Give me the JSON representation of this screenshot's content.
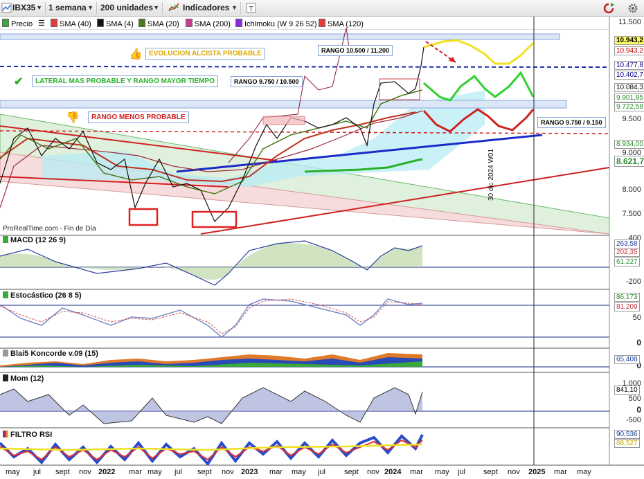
{
  "toolbar": {
    "symbol": "IBX35",
    "period": "1 semana",
    "units": "200 unidades",
    "indicators_label": "Indicadores"
  },
  "legend": [
    {
      "label": "Precio",
      "color": "#3aa83a"
    },
    {
      "label": "SMA (40)",
      "color": "#e23b3b"
    },
    {
      "label": "SMA (4)",
      "color": "#111111"
    },
    {
      "label": "SMA (20)",
      "color": "#4a7a1a"
    },
    {
      "label": "SMA (200)",
      "color": "#c93d8f"
    },
    {
      "label": "Ichimoku (W 9 26 52)",
      "color": "#8a2be2"
    },
    {
      "label": "SMA (120)",
      "color": "#e23b3b"
    }
  ],
  "annotations": {
    "alcista": "EVOLUCION ALCISTA PROBABLE",
    "lateral": "LATERAL MAS PROBABLE Y RANGO MAYOR TIEMPO",
    "rango_menos": "RANGO MENOS PROBABLE",
    "rango_1": "RANGO 10.500 / 11.200",
    "rango_2": "RANGO 9.750 / 10.500",
    "rango_3": "RANGO 9.750 / 9.150",
    "source": "ProRealTime.com - Fin de Día",
    "vline_label": "30 dic 2024 W01"
  },
  "main_axis": {
    "ticks": [
      "11.500",
      "9.500",
      "9.000",
      "8.000",
      "7.500"
    ],
    "price_labels": [
      {
        "text": "10.943,2",
        "bg": "#ffff66",
        "color": "#000000"
      },
      {
        "text": "10.943,2",
        "bg": "#ffffff",
        "color": "#c00000"
      },
      {
        "text": "10.477,8",
        "bg": "#ffffff",
        "color": "#000080"
      },
      {
        "text": "10.402,7",
        "bg": "#ffffff",
        "color": "#000080"
      },
      {
        "text": "10.084,3",
        "bg": "#ffffff",
        "color": "#111111"
      },
      {
        "text": "9.901,85",
        "bg": "#ffffff",
        "color": "#2a8a2a"
      },
      {
        "text": "9.722,58",
        "bg": "#ffffff",
        "color": "#2a8a2a"
      },
      {
        "text": "8.934,00",
        "bg": "#ffffff",
        "color": "#2a8a2a"
      },
      {
        "text": "8.621,7",
        "bg": "#ffffff",
        "color": "#2a8a2a"
      }
    ]
  },
  "panels": {
    "macd": {
      "label": "MACD (12 26 9)",
      "ticks": [
        "400",
        "-200"
      ],
      "values": [
        "263,58",
        "202,35",
        "61,227"
      ],
      "value_colors": [
        "#1a3a9a",
        "#c03040",
        "#2a8a2a"
      ]
    },
    "stoch": {
      "label": "Estocástico (26 8 5)",
      "ticks": [
        "50",
        "0"
      ],
      "values": [
        "86,173",
        "81,209"
      ],
      "value_colors": [
        "#2a8a2a",
        "#c03040"
      ]
    },
    "koncorde": {
      "label": "Blai5 Koncorde v.09 (15)",
      "ticks": [
        "0"
      ],
      "values": [
        "65,408"
      ],
      "value_colors": [
        "#1a3a9a"
      ]
    },
    "mom": {
      "label": "Mom (12)",
      "ticks": [
        "1.000",
        "500",
        "0",
        "-500"
      ],
      "values": [
        "841,10"
      ],
      "value_colors": [
        "#111111"
      ]
    },
    "rsi": {
      "label": "FILTRO RSI",
      "ticks": [],
      "values": [
        "90,536",
        "68,527"
      ],
      "value_colors": [
        "#1a3a9a",
        "#c8a800"
      ]
    }
  },
  "x_axis": {
    "labels": [
      {
        "text": "may",
        "bold": false
      },
      {
        "text": "jul",
        "bold": false
      },
      {
        "text": "sept",
        "bold": false
      },
      {
        "text": "nov",
        "bold": false
      },
      {
        "text": "2022",
        "bold": true
      },
      {
        "text": "mar",
        "bold": false
      },
      {
        "text": "may",
        "bold": false
      },
      {
        "text": "jul",
        "bold": false
      },
      {
        "text": "sept",
        "bold": false
      },
      {
        "text": "nov",
        "bold": false
      },
      {
        "text": "2023",
        "bold": true
      },
      {
        "text": "mar",
        "bold": false
      },
      {
        "text": "may",
        "bold": false
      },
      {
        "text": "jul",
        "bold": false
      },
      {
        "text": "sept",
        "bold": false
      },
      {
        "text": "nov",
        "bold": false
      },
      {
        "text": "2024",
        "bold": true
      },
      {
        "text": "mar",
        "bold": false
      },
      {
        "text": "may",
        "bold": false
      },
      {
        "text": "jul",
        "bold": false
      },
      {
        "text": "sept",
        "bold": false
      },
      {
        "text": "nov",
        "bold": false
      },
      {
        "text": "2025",
        "bold": true
      },
      {
        "text": "mar",
        "bold": false
      },
      {
        "text": "may",
        "bold": false
      }
    ]
  },
  "chart_data": {
    "type": "line",
    "title": "",
    "series": [
      {
        "name": "Precio",
        "x": [
          "may 2021",
          "jul 2021",
          "sept 2021",
          "nov 2021",
          "ene 2022",
          "mar 2022",
          "may 2022",
          "jul 2022",
          "sept 2022",
          "nov 2022",
          "ene 2023",
          "mar 2023",
          "may 2023",
          "jul 2023",
          "sept 2023",
          "nov 2023",
          "ene 2024",
          "mar 2024"
        ],
        "values": [
          8900,
          9050,
          8850,
          8950,
          8700,
          7700,
          8400,
          8100,
          7500,
          8100,
          8900,
          9300,
          9300,
          9450,
          9400,
          9000,
          10050,
          10943
        ]
      }
    ],
    "ylim": [
      7250,
      11500
    ],
    "annotations": [
      "EVOLUCION ALCISTA PROBABLE",
      "LATERAL MAS PROBABLE Y RANGO MAYOR TIEMPO",
      "RANGO MENOS PROBABLE",
      "RANGO 10.500 / 11.200",
      "RANGO 9.750 / 10.500",
      "RANGO 9.750 / 9.150"
    ],
    "vertical_marker": "30 dic 2024 W01"
  }
}
